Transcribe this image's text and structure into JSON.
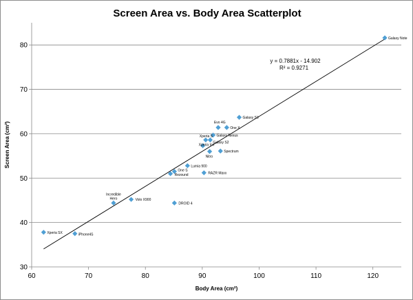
{
  "chart_data": {
    "type": "scatter",
    "title": "Screen Area vs. Body Area Scatterplot",
    "xlabel": "Body Area (cm²)",
    "ylabel": "Screen Area (cm²)",
    "xlim": [
      60,
      125
    ],
    "ylim": [
      30,
      85
    ],
    "xticks": [
      60,
      70,
      80,
      90,
      100,
      110,
      120
    ],
    "yticks": [
      30,
      40,
      50,
      60,
      70,
      80
    ],
    "grid": "horizontal",
    "marker_color": "#4f9fd4",
    "line_color": "#000000",
    "points": [
      {
        "label": "Galaxy Note",
        "x": 122.1,
        "y": 81.6
      },
      {
        "label": "Galaxy S3",
        "x": 96.5,
        "y": 63.7
      },
      {
        "label": "Evo 4G",
        "x": 92.8,
        "y": 61.4
      },
      {
        "label": "One X",
        "x": 94.3,
        "y": 61.4
      },
      {
        "label": "Galaxy Nexus",
        "x": 91.9,
        "y": 59.7
      },
      {
        "label": "Xperia S",
        "x": 90.6,
        "y": 58.6
      },
      {
        "label": "Galaxy S2",
        "x": 91.4,
        "y": 58.6
      },
      {
        "label": "Xperia Ion",
        "x": 90.1,
        "y": 57.3
      },
      {
        "label": "Nitro",
        "x": 91.3,
        "y": 56.0
      },
      {
        "label": "Spectrum",
        "x": 93.2,
        "y": 56.1
      },
      {
        "label": "Lumia 900",
        "x": 87.4,
        "y": 52.8
      },
      {
        "label": "One S",
        "x": 85.1,
        "y": 51.5
      },
      {
        "label": "Rezound",
        "x": 84.4,
        "y": 51.0
      },
      {
        "label": "RAZR Maxx",
        "x": 90.3,
        "y": 51.2
      },
      {
        "label": "Incredible",
        "x": 74.4,
        "y": 44.4
      },
      {
        "label": "Volo X900",
        "x": 77.5,
        "y": 45.2
      },
      {
        "label": "DROID 4",
        "x": 85.1,
        "y": 44.4
      },
      {
        "label": "Xperia SX",
        "x": 62.1,
        "y": 37.8
      },
      {
        "label": "iPhone4S",
        "x": 67.6,
        "y": 37.5
      }
    ],
    "trendline": {
      "equation": "y = 0.7881x - 14.902",
      "r2": "R² = 0.9271",
      "slope": 0.7881,
      "intercept": -14.902,
      "x_range": [
        62.1,
        122.1
      ]
    },
    "extra_labels": {
      "Incredible": "Hero"
    }
  }
}
